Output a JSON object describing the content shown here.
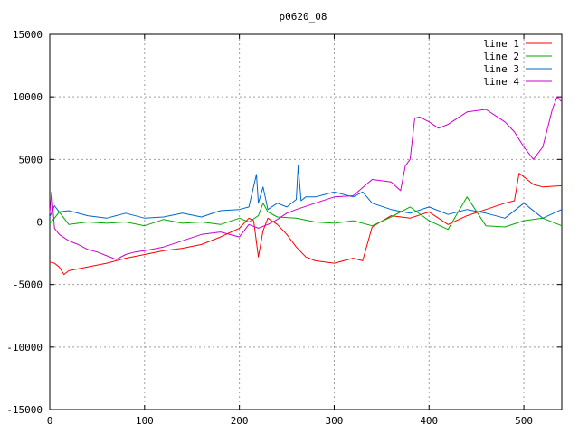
{
  "chart_data": {
    "type": "line",
    "title": "p0620_08",
    "xlabel": "",
    "ylabel": "",
    "xlim": [
      0,
      540
    ],
    "ylim": [
      -15000,
      15000
    ],
    "x_ticks": [
      0,
      100,
      200,
      300,
      400,
      500
    ],
    "y_ticks": [
      -15000,
      -10000,
      -5000,
      0,
      5000,
      10000,
      15000
    ],
    "grid": true,
    "legend_position": "top-right",
    "series": [
      {
        "name": "line 1",
        "color": "#ff0000",
        "x": [
          0,
          5,
          10,
          15,
          20,
          40,
          60,
          80,
          100,
          120,
          140,
          160,
          180,
          200,
          210,
          215,
          220,
          225,
          230,
          240,
          250,
          260,
          270,
          280,
          300,
          320,
          330,
          340,
          360,
          380,
          400,
          420,
          440,
          460,
          480,
          490,
          495,
          500,
          510,
          520,
          540
        ],
        "y": [
          -3200,
          -3300,
          -3600,
          -4200,
          -3900,
          -3600,
          -3300,
          -2900,
          -2600,
          -2300,
          -2100,
          -1800,
          -1200,
          -500,
          300,
          100,
          -2800,
          -700,
          300,
          -200,
          -1000,
          -2000,
          -2800,
          -3100,
          -3300,
          -2900,
          -3100,
          -400,
          500,
          300,
          800,
          -200,
          500,
          1000,
          1500,
          1700,
          3900,
          3600,
          3000,
          2800,
          2900
        ]
      },
      {
        "name": "line 2",
        "color": "#00aa00",
        "x": [
          0,
          5,
          10,
          20,
          40,
          60,
          80,
          100,
          120,
          140,
          160,
          180,
          200,
          210,
          220,
          225,
          230,
          240,
          260,
          280,
          300,
          320,
          340,
          360,
          380,
          400,
          420,
          440,
          460,
          480,
          500,
          520,
          540
        ],
        "y": [
          -100,
          300,
          800,
          -200,
          0,
          -100,
          0,
          -300,
          200,
          -100,
          0,
          -200,
          300,
          0,
          500,
          1500,
          800,
          400,
          300,
          0,
          -100,
          100,
          -300,
          400,
          1200,
          100,
          -600,
          2000,
          -300,
          -400,
          100,
          300,
          -300
        ]
      },
      {
        "name": "line 3",
        "color": "#0066cc",
        "x": [
          0,
          5,
          10,
          20,
          40,
          60,
          80,
          100,
          120,
          140,
          160,
          180,
          200,
          210,
          218,
          220,
          225,
          230,
          240,
          250,
          260,
          262,
          265,
          270,
          280,
          290,
          300,
          320,
          330,
          340,
          360,
          380,
          400,
          420,
          440,
          460,
          480,
          500,
          520,
          540
        ],
        "y": [
          400,
          1300,
          800,
          900,
          500,
          300,
          700,
          300,
          400,
          700,
          400,
          900,
          1000,
          1200,
          3800,
          1500,
          2800,
          1000,
          1500,
          1200,
          1800,
          4500,
          1700,
          2000,
          2000,
          2200,
          2400,
          2000,
          2400,
          1500,
          1000,
          700,
          1200,
          600,
          1000,
          700,
          300,
          1500,
          300,
          1000
        ]
      },
      {
        "name": "line 4",
        "color": "#cc00cc",
        "x": [
          0,
          2,
          5,
          10,
          20,
          30,
          40,
          50,
          60,
          70,
          80,
          90,
          100,
          120,
          140,
          160,
          180,
          200,
          210,
          220,
          230,
          240,
          250,
          260,
          280,
          300,
          320,
          340,
          360,
          370,
          375,
          380,
          385,
          390,
          400,
          410,
          420,
          440,
          460,
          480,
          490,
          500,
          510,
          520,
          530,
          535,
          540
        ],
        "y": [
          700,
          2400,
          -500,
          -1000,
          -1500,
          -1800,
          -2200,
          -2400,
          -2700,
          -3000,
          -2600,
          -2400,
          -2300,
          -2000,
          -1500,
          -1000,
          -800,
          -1200,
          -200,
          -500,
          -200,
          200,
          700,
          1000,
          1500,
          2000,
          2100,
          3400,
          3200,
          2500,
          4500,
          5000,
          8300,
          8400,
          8000,
          7500,
          7800,
          8800,
          9000,
          8000,
          7200,
          6000,
          5000,
          6000,
          9000,
          10000,
          9600
        ]
      }
    ]
  }
}
